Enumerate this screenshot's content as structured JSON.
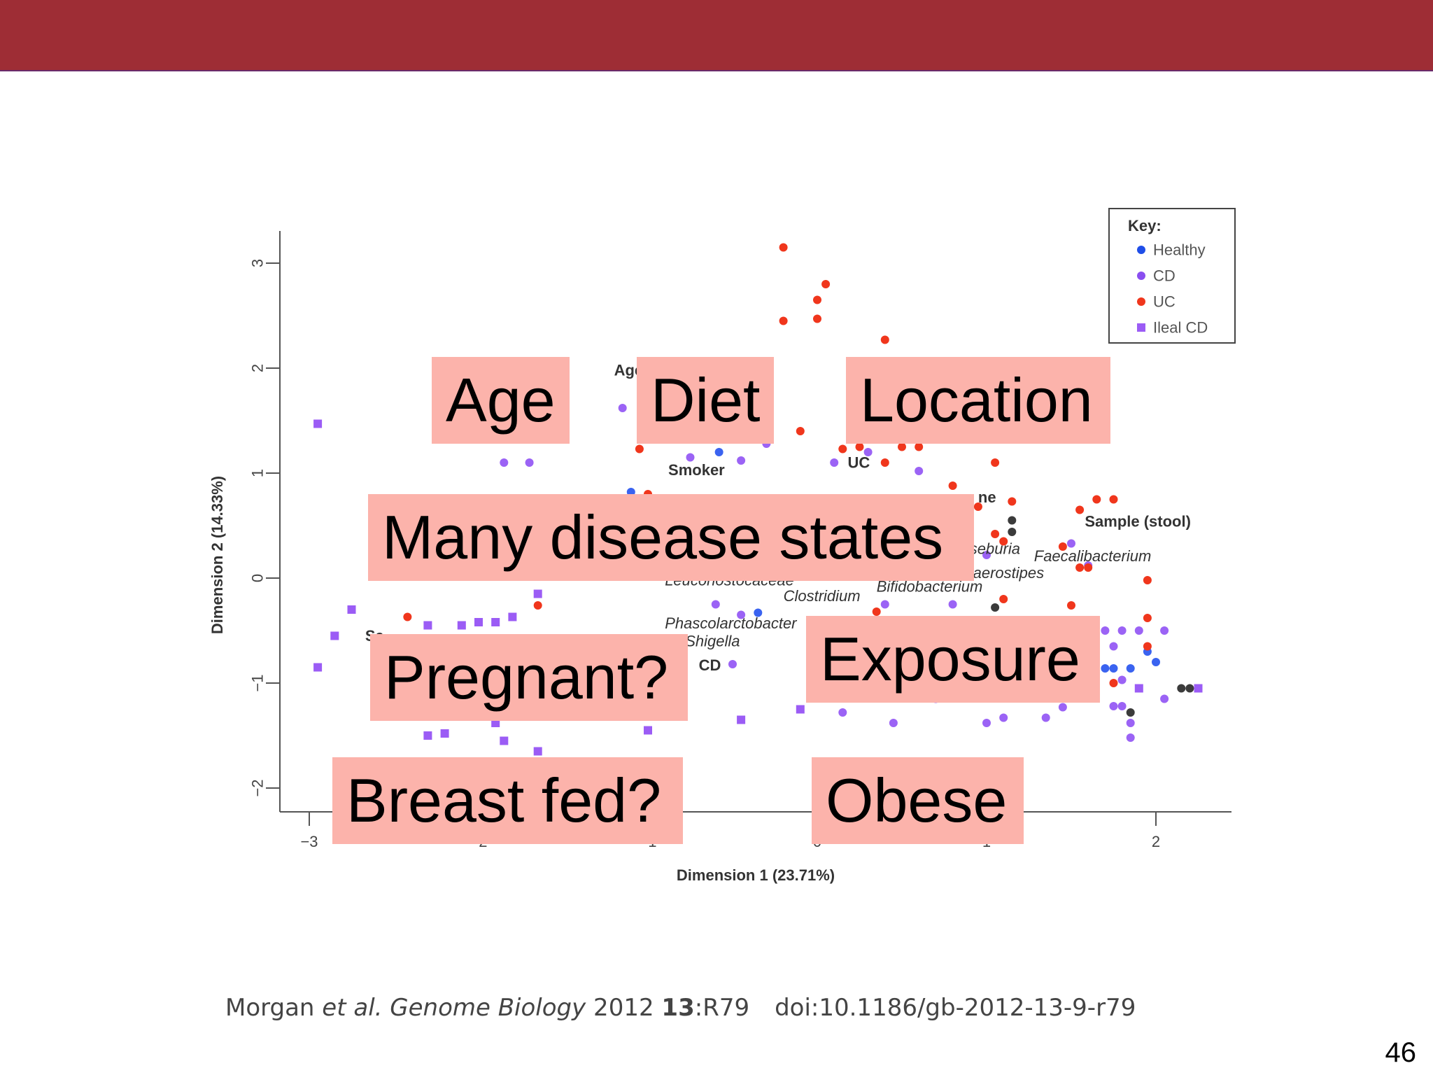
{
  "chart_data": {
    "type": "scatter",
    "xlabel": "Dimension 1 (23.71%)",
    "ylabel": "Dimension 2 (14.33%)",
    "xlim": [
      -3.1,
      2.45
    ],
    "ylim": [
      -2.2,
      3.3
    ],
    "x_ticks": [
      {
        "value": -3,
        "label": "−3"
      },
      {
        "value": -2,
        "label": "−2"
      },
      {
        "value": -1,
        "label": "−1"
      },
      {
        "value": 0,
        "label": "0"
      },
      {
        "value": 1,
        "label": "1"
      },
      {
        "value": 2,
        "label": "2"
      }
    ],
    "y_ticks": [
      {
        "value": 3,
        "label": "3"
      },
      {
        "value": 2,
        "label": "2"
      },
      {
        "value": 1,
        "label": "1"
      },
      {
        "value": 0,
        "label": "0"
      },
      {
        "value": -1,
        "label": "−1"
      },
      {
        "value": -2,
        "label": "−2"
      }
    ],
    "legend": {
      "title": "Key:",
      "position": "top-right",
      "entries": [
        {
          "label": "Healthy",
          "color": "#1f4ee8",
          "marker": "circle"
        },
        {
          "label": "CD",
          "color": "#8a4ef0",
          "marker": "circle"
        },
        {
          "label": "UC",
          "color": "#f0361c",
          "marker": "circle"
        },
        {
          "label": "Ileal CD",
          "color": "#9b5cf5",
          "marker": "square"
        }
      ]
    },
    "series": [
      {
        "name": "Healthy",
        "color": "#3a63f0",
        "marker": "circle",
        "points": [
          [
            -0.58,
            1.2
          ],
          [
            -1.1,
            0.82
          ],
          [
            -0.35,
            -0.33
          ],
          [
            1.7,
            -0.86
          ],
          [
            1.75,
            -0.86
          ],
          [
            1.85,
            -0.86
          ],
          [
            1.95,
            -0.7
          ],
          [
            2.0,
            -0.8
          ]
        ]
      },
      {
        "name": "CD",
        "color": "#9b63f5",
        "marker": "circle",
        "points": [
          [
            -1.15,
            1.62
          ],
          [
            -0.3,
            1.48
          ],
          [
            -0.3,
            1.28
          ],
          [
            -0.75,
            1.15
          ],
          [
            -0.45,
            1.12
          ],
          [
            0.1,
            1.1
          ],
          [
            0.3,
            1.2
          ],
          [
            0.6,
            1.02
          ],
          [
            -1.85,
            1.1
          ],
          [
            -1.7,
            1.1
          ],
          [
            1.0,
            0.22
          ],
          [
            1.5,
            0.33
          ],
          [
            1.6,
            0.12
          ],
          [
            0.4,
            -0.25
          ],
          [
            0.8,
            -0.25
          ],
          [
            -0.6,
            -0.25
          ],
          [
            -0.45,
            -0.35
          ],
          [
            -0.5,
            -0.82
          ],
          [
            1.7,
            -0.5
          ],
          [
            1.8,
            -0.5
          ],
          [
            1.9,
            -0.5
          ],
          [
            2.05,
            -0.5
          ],
          [
            1.75,
            -0.65
          ],
          [
            1.8,
            -0.97
          ],
          [
            1.75,
            -1.22
          ],
          [
            1.8,
            -1.22
          ],
          [
            1.85,
            -1.38
          ],
          [
            1.85,
            -1.52
          ],
          [
            2.05,
            -1.15
          ],
          [
            0.15,
            -1.28
          ],
          [
            0.45,
            -1.38
          ],
          [
            1.0,
            -1.38
          ],
          [
            1.1,
            -1.33
          ],
          [
            1.35,
            -1.33
          ],
          [
            1.45,
            -1.23
          ],
          [
            0.7,
            -1.15
          ]
        ]
      },
      {
        "name": "UC",
        "color": "#f0361c",
        "marker": "circle",
        "points": [
          [
            -0.2,
            3.15
          ],
          [
            -0.2,
            2.45
          ],
          [
            0.05,
            2.8
          ],
          [
            0.0,
            2.65
          ],
          [
            0.0,
            2.47
          ],
          [
            0.4,
            2.27
          ],
          [
            -0.1,
            1.4
          ],
          [
            -1.05,
            1.23
          ],
          [
            -1.0,
            0.8
          ],
          [
            0.15,
            1.23
          ],
          [
            0.25,
            1.25
          ],
          [
            0.5,
            1.25
          ],
          [
            0.6,
            1.25
          ],
          [
            0.4,
            1.1
          ],
          [
            0.8,
            0.88
          ],
          [
            0.9,
            0.75
          ],
          [
            0.95,
            0.68
          ],
          [
            1.05,
            0.42
          ],
          [
            1.1,
            0.35
          ],
          [
            1.15,
            0.73
          ],
          [
            1.05,
            1.1
          ],
          [
            1.45,
            0.3
          ],
          [
            1.55,
            0.65
          ],
          [
            1.65,
            0.75
          ],
          [
            1.75,
            0.75
          ],
          [
            1.55,
            0.1
          ],
          [
            1.6,
            0.1
          ],
          [
            1.95,
            -0.02
          ],
          [
            1.95,
            -0.65
          ],
          [
            1.95,
            -0.38
          ],
          [
            1.5,
            -0.26
          ],
          [
            1.1,
            -0.2
          ],
          [
            -2.42,
            -0.37
          ],
          [
            -1.65,
            -0.26
          ],
          [
            1.75,
            -1.0
          ],
          [
            0.35,
            -0.32
          ]
        ]
      },
      {
        "name": "Ileal CD",
        "color": "#9b5cf5",
        "marker": "square",
        "points": [
          [
            -2.95,
            1.47
          ],
          [
            -2.95,
            -0.85
          ],
          [
            -2.75,
            -0.3
          ],
          [
            -2.85,
            -0.55
          ],
          [
            -2.3,
            -0.45
          ],
          [
            -2.1,
            -0.45
          ],
          [
            -2.0,
            -0.42
          ],
          [
            -1.9,
            -0.42
          ],
          [
            -1.8,
            -0.37
          ],
          [
            -1.65,
            -0.15
          ],
          [
            -2.3,
            -1.5
          ],
          [
            -2.2,
            -1.48
          ],
          [
            -1.9,
            -1.38
          ],
          [
            -1.85,
            -1.55
          ],
          [
            -1.65,
            -1.65
          ],
          [
            -1.0,
            -1.45
          ],
          [
            -0.45,
            -1.35
          ],
          [
            -0.1,
            -1.25
          ],
          [
            2.25,
            -1.05
          ],
          [
            1.9,
            -1.05
          ]
        ]
      },
      {
        "name": "Sample",
        "color": "#3b3b3b",
        "marker": "circle",
        "points": [
          [
            1.15,
            0.55
          ],
          [
            1.15,
            0.44
          ],
          [
            1.05,
            -0.28
          ],
          [
            1.85,
            -1.28
          ],
          [
            2.15,
            -1.05
          ],
          [
            2.2,
            -1.05
          ]
        ]
      }
    ],
    "annotations": [
      {
        "text": "Age",
        "x": -1.2,
        "y": 1.93,
        "weight": "bold",
        "style": "normal"
      },
      {
        "text": "Smoker",
        "x": -0.88,
        "y": 0.98,
        "weight": "bold",
        "style": "normal"
      },
      {
        "text": "UC",
        "x": 0.18,
        "y": 1.05,
        "weight": "bold",
        "style": "normal"
      },
      {
        "text": "ne",
        "x": 0.95,
        "y": 0.72,
        "weight": "bold",
        "style": "normal"
      },
      {
        "text": "Sample (stool)",
        "x": 1.58,
        "y": 0.49,
        "weight": "bold",
        "style": "normal"
      },
      {
        "text": "seburia",
        "x": 0.9,
        "y": 0.23,
        "weight": "normal",
        "style": "italic"
      },
      {
        "text": "Faecalibacterium",
        "x": 1.28,
        "y": 0.16,
        "weight": "normal",
        "style": "italic"
      },
      {
        "text": "aerostipes",
        "x": 0.92,
        "y": 0.0,
        "weight": "normal",
        "style": "italic"
      },
      {
        "text": "Bifidobacterium",
        "x": 0.35,
        "y": -0.13,
        "weight": "normal",
        "style": "italic"
      },
      {
        "text": "Leuconostocaceae",
        "x": -0.9,
        "y": -0.07,
        "weight": "normal",
        "style": "italic"
      },
      {
        "text": "Clostridium",
        "x": -0.2,
        "y": -0.22,
        "weight": "normal",
        "style": "italic"
      },
      {
        "text": "Phascolarctobacter",
        "x": -0.9,
        "y": -0.48,
        "weight": "normal",
        "style": "italic"
      },
      {
        "text": "Shigella",
        "x": -0.78,
        "y": -0.65,
        "weight": "normal",
        "style": "italic"
      },
      {
        "text": "CD",
        "x": -0.7,
        "y": -0.88,
        "weight": "bold",
        "style": "normal"
      },
      {
        "text": "Sa",
        "x": -2.67,
        "y": -0.6,
        "weight": "bold",
        "style": "normal"
      }
    ],
    "grid": false
  },
  "overlays": {
    "age": "Age",
    "diet": "Diet",
    "location": "Location",
    "many_disease_states": "Many disease states",
    "pregnant": "Pregnant?",
    "exposure": "Exposure",
    "breast_fed": "Breast fed?",
    "obese": "Obese"
  },
  "citation": {
    "author": "Morgan ",
    "etal": "et al.",
    "journal": " Genome Biology",
    "year": " 2012 ",
    "volume": "13",
    "article": ":R79",
    "doi": "doi:10.1186/gb-2012-13-9-r79"
  },
  "slide_number": "46"
}
